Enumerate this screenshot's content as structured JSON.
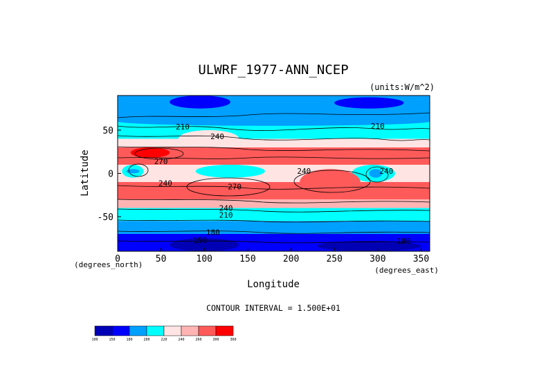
{
  "chart_data": {
    "type": "heatmap",
    "title": "ULWRF_1977-ANN_NCEP",
    "units_label": "(units:W/m^2)",
    "xlabel": "Longitude",
    "ylabel": "Latitude",
    "x_unit_label": "(degrees_east)",
    "y_unit_label": "(degrees_north)",
    "xlim": [
      0,
      360
    ],
    "ylim": [
      -90,
      90
    ],
    "x_ticks": [
      0,
      50,
      100,
      150,
      200,
      250,
      300,
      350
    ],
    "y_ticks": [
      50,
      0,
      -50
    ],
    "contour_interval_text": "CONTOUR INTERVAL = 1.500E+01",
    "colorbar": {
      "levels": [
        100,
        150,
        180,
        200,
        220,
        240,
        260,
        300,
        360
      ],
      "level_labels": [
        "100",
        "150",
        "180",
        "200",
        "220",
        "240",
        "260",
        "300",
        "360"
      ],
      "colors": [
        "#0000b4",
        "#0000ff",
        "#00a0ff",
        "#00ffff",
        "#ffe4e4",
        "#ffb4b4",
        "#ff5a5a",
        "#ff0000"
      ]
    },
    "bands": [
      {
        "lat": [
          60,
          90
        ],
        "value": 195,
        "color": "#00a0ff"
      },
      {
        "lat": [
          40,
          60
        ],
        "value": 215,
        "color": "#00ffff"
      },
      {
        "lat": [
          30,
          40
        ],
        "value": 230,
        "color": "#ffe4e4"
      },
      {
        "lat": [
          10,
          30
        ],
        "value": 270,
        "color": "#ff5a5a"
      },
      {
        "lat": [
          -10,
          10
        ],
        "value": 235,
        "color": "#ffe4e4"
      },
      {
        "lat": [
          -30,
          -10
        ],
        "value": 270,
        "color": "#ff5a5a"
      },
      {
        "lat": [
          -40,
          -30
        ],
        "value": 235,
        "color": "#ffb4b4"
      },
      {
        "lat": [
          -55,
          -40
        ],
        "value": 215,
        "color": "#00ffff"
      },
      {
        "lat": [
          -70,
          -55
        ],
        "value": 195,
        "color": "#00a0ff"
      },
      {
        "lat": [
          -90,
          -70
        ],
        "value": 150,
        "color": "#0000ff"
      }
    ],
    "patches": [
      {
        "lon": [
          5,
          30
        ],
        "lat": [
          -5,
          10
        ],
        "value": 210,
        "color": "#00ffff"
      },
      {
        "lon": [
          10,
          25
        ],
        "lat": [
          0,
          5
        ],
        "value": 200,
        "color": "#00a0ff"
      },
      {
        "lon": [
          70,
          140
        ],
        "lat": [
          30,
          50
        ],
        "value": 220,
        "color": "#ffe4e4"
      },
      {
        "lon": [
          90,
          170
        ],
        "lat": [
          -5,
          10
        ],
        "value": 210,
        "color": "#00ffff"
      },
      {
        "lon": [
          270,
          320
        ],
        "lat": [
          -10,
          10
        ],
        "value": 205,
        "color": "#00ffff"
      },
      {
        "lon": [
          290,
          305
        ],
        "lat": [
          -5,
          5
        ],
        "value": 195,
        "color": "#00a0ff"
      },
      {
        "lon": [
          15,
          60
        ],
        "lat": [
          18,
          30
        ],
        "value": 300,
        "color": "#ff0000"
      },
      {
        "lon": [
          210,
          280
        ],
        "lat": [
          -25,
          5
        ],
        "value": 275,
        "color": "#ff5a5a"
      },
      {
        "lon": [
          0,
          360
        ],
        "lat": [
          55,
          65
        ],
        "value": 205,
        "color": "#00a0ff"
      },
      {
        "lon": [
          60,
          140
        ],
        "lat": [
          -90,
          -75
        ],
        "value": 130,
        "color": "#0000b4"
      },
      {
        "lon": [
          230,
          350
        ],
        "lat": [
          -90,
          -78
        ],
        "value": 130,
        "color": "#0000b4"
      },
      {
        "lon": [
          60,
          130
        ],
        "lat": [
          75,
          90
        ],
        "value": 185,
        "color": "#0000ff"
      },
      {
        "lon": [
          250,
          330
        ],
        "lat": [
          75,
          88
        ],
        "value": 185,
        "color": "#0000ff"
      }
    ],
    "contour_labels": [
      {
        "text": "210",
        "lon": 75,
        "lat": 54
      },
      {
        "text": "210",
        "lon": 300,
        "lat": 55
      },
      {
        "text": "240",
        "lon": 115,
        "lat": 43
      },
      {
        "text": "270",
        "lon": 50,
        "lat": 14
      },
      {
        "text": "240",
        "lon": 215,
        "lat": 3
      },
      {
        "text": "240",
        "lon": 310,
        "lat": 3
      },
      {
        "text": "240",
        "lon": 55,
        "lat": -11
      },
      {
        "text": "270",
        "lon": 135,
        "lat": -15
      },
      {
        "text": "240",
        "lon": 125,
        "lat": -40
      },
      {
        "text": "210",
        "lon": 125,
        "lat": -48
      },
      {
        "text": "180",
        "lon": 110,
        "lat": -68
      },
      {
        "text": "150",
        "lon": 95,
        "lat": -77
      },
      {
        "text": "180",
        "lon": 330,
        "lat": -78
      }
    ]
  }
}
